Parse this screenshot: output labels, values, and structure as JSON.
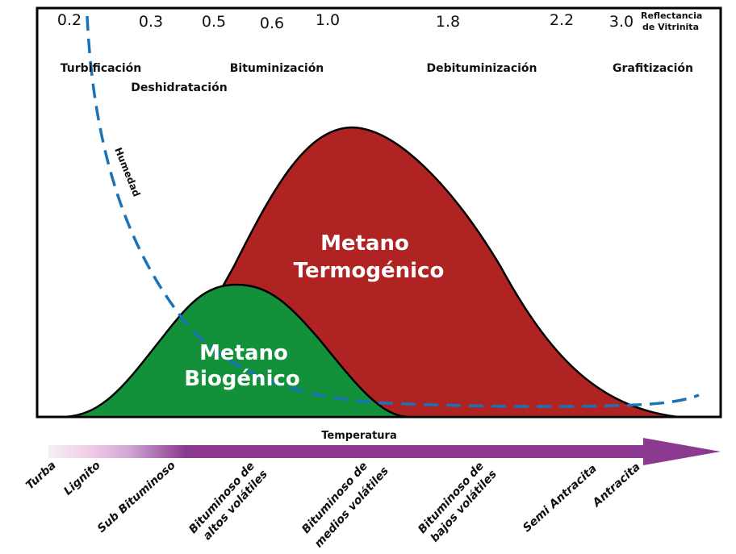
{
  "reflectance": {
    "label_line1": "Reflectancia",
    "label_line2": "de Vitrinita",
    "values": [
      "0.2",
      "0.3",
      "0.5",
      "0.6",
      "1.0",
      "1.8",
      "2.2",
      "3.0"
    ]
  },
  "stages": [
    "Turbificación",
    "Deshidratación",
    "Bituminización",
    "Debituminización",
    "Grafitización"
  ],
  "humidity_label": "Humedad",
  "regions": {
    "thermogenic": {
      "line1": "Metano",
      "line2": "Termogénico",
      "color": "#b02323"
    },
    "biogenic": {
      "line1": "Metano",
      "line2": "Biogénico",
      "color": "#13913a"
    }
  },
  "humidity_color": "#1a73b8",
  "arrow": {
    "label": "Temperatura",
    "color": "#8b3a8f"
  },
  "coal_ranks": [
    {
      "line1": "Turba"
    },
    {
      "line1": "Lignito"
    },
    {
      "line1": "Sub Bituminoso"
    },
    {
      "line1": "Bituminoso de",
      "line2": "altos volátiles"
    },
    {
      "line1": "Bituminoso de",
      "line2": "medios volátiles"
    },
    {
      "line1": "Bituminoso de",
      "line2": "bajos volátiles"
    },
    {
      "line1": "Semi Antracita"
    },
    {
      "line1": "Antracita"
    }
  ]
}
